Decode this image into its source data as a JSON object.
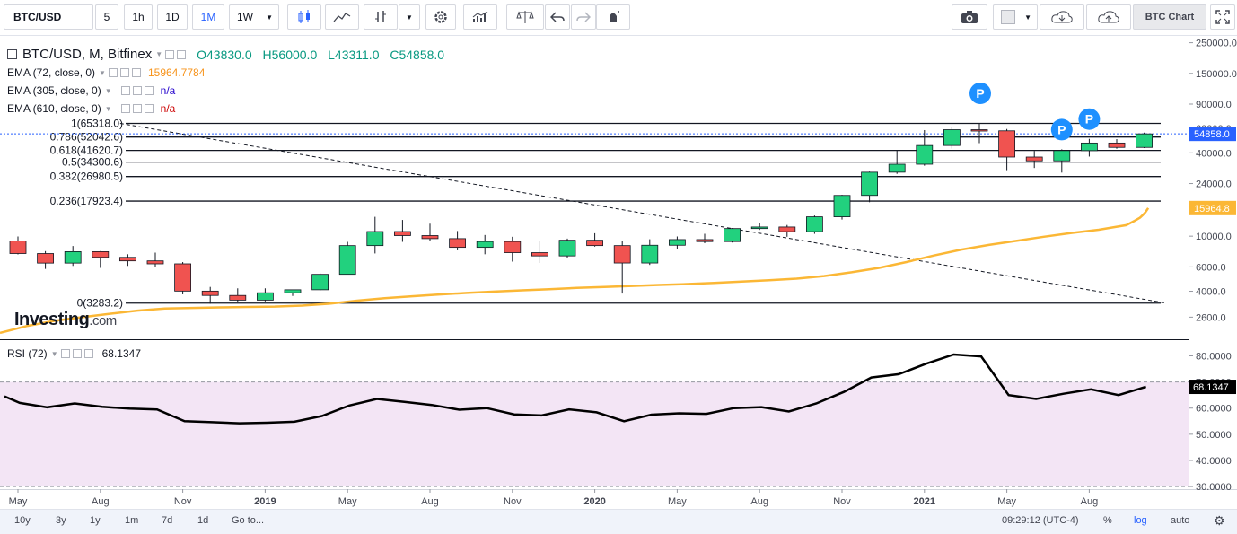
{
  "toolbar": {
    "symbol": "BTC/USD",
    "intervals": [
      "5",
      "1h",
      "1D",
      "1M",
      "1W"
    ],
    "active_interval": "1M",
    "brand_button": "BTC Chart"
  },
  "legend": {
    "title": "BTC/USD, M, Bitfinex",
    "open": "O43830.0",
    "high": "H56000.0",
    "low": "L43311.0",
    "close": "C54858.0",
    "ema72_label": "EMA (72, close, 0)",
    "ema72_value": "15964.7784",
    "ema305_label": "EMA (305, close, 0)",
    "ema305_value": "n/a",
    "ema610_label": "EMA (610, close, 0)",
    "ema610_value": "n/a"
  },
  "rsi_legend": {
    "label": "RSI (72)",
    "value": "68.1347"
  },
  "watermark": {
    "main": "Investing",
    "suffix": ".com"
  },
  "colors": {
    "up": "#22d17e",
    "down": "#f05350",
    "ema": "#fbb735",
    "ema305": "#2200cc",
    "ema610": "#cc0000",
    "price_tag": "#2962ff",
    "marker": "#1e90ff",
    "rsi_band": "#f3e5f5"
  },
  "icons": [
    "candles-icon",
    "line-chart-icon",
    "bars-icon",
    "gear-icon",
    "histogram-icon",
    "scales-icon",
    "undo-icon",
    "redo-icon",
    "alert-icon",
    "camera-icon",
    "cloud-down-icon",
    "cloud-up-icon",
    "fullscreen-icon"
  ],
  "bottom": {
    "ranges": [
      "10y",
      "3y",
      "1y",
      "1m",
      "7d",
      "1d",
      "Go to..."
    ],
    "time": "09:29:12 (UTC-4)",
    "percent": "%",
    "log": "log",
    "auto": "auto"
  },
  "chart_data": {
    "type": "candlestick",
    "scale": "log",
    "months_labels": [
      "May",
      "Aug",
      "Nov",
      "2019",
      "May",
      "Aug",
      "Nov",
      "2020",
      "May",
      "Aug",
      "Nov",
      "2021",
      "May",
      "Aug"
    ],
    "price_ticks": [
      "250000.0",
      "150000.0",
      "90000.0",
      "60000.0",
      "40000.0",
      "24000.0",
      "16000.0",
      "10000.0",
      "6000.0",
      "4000.0",
      "2600.0"
    ],
    "price_tick_values": [
      250000,
      150000,
      90000,
      60000,
      40000,
      24000,
      16000,
      10000,
      6000,
      4000,
      2600
    ],
    "ylim": [
      1800,
      280000
    ],
    "last_price": "54858.0",
    "ema_last": "15964.8",
    "fib_levels": [
      {
        "label": "1(65318.0)",
        "value": 65318.0
      },
      {
        "label": "0.786(52042.6)",
        "value": 52042.6
      },
      {
        "label": "0.618(41620.7)",
        "value": 41620.7
      },
      {
        "label": "0.5(34300.6)",
        "value": 34300.6
      },
      {
        "label": "0.382(26980.5)",
        "value": 26980.5
      },
      {
        "label": "0.236(17923.4)",
        "value": 17923.4
      },
      {
        "label": "0(3283.2)",
        "value": 3283.2
      }
    ],
    "candles": [
      [
        9240,
        7490,
        9950,
        7380
      ],
      [
        7490,
        6390,
        7800,
        5800
      ],
      [
        6390,
        7730,
        8490,
        6100
      ],
      [
        7730,
        7030,
        7800,
        5900
      ],
      [
        7030,
        6630,
        7400,
        6100
      ],
      [
        6630,
        6310,
        7600,
        6000
      ],
      [
        6310,
        4010,
        6500,
        3800
      ],
      [
        4010,
        3730,
        4300,
        3250
      ],
      [
        3730,
        3450,
        4200,
        3350
      ],
      [
        3450,
        3900,
        4200,
        3380
      ],
      [
        3900,
        4100,
        4100,
        3700
      ],
      [
        4100,
        5300,
        5400,
        4050
      ],
      [
        5300,
        8550,
        9100,
        5300
      ],
      [
        8550,
        10800,
        13800,
        7500
      ],
      [
        10800,
        10100,
        13100,
        9100
      ],
      [
        10100,
        9600,
        12300,
        9300
      ],
      [
        9600,
        8300,
        10900,
        7900
      ],
      [
        8300,
        9150,
        10200,
        7400
      ],
      [
        9150,
        7600,
        9900,
        6550
      ],
      [
        7600,
        7200,
        9300,
        6400
      ],
      [
        7200,
        9350,
        9600,
        6900
      ],
      [
        9350,
        8550,
        10500,
        8400
      ],
      [
        8550,
        6400,
        9200,
        3850
      ],
      [
        6400,
        8600,
        9500,
        6200
      ],
      [
        8600,
        9450,
        9950,
        8100
      ],
      [
        9450,
        9140,
        10400,
        8900
      ],
      [
        9140,
        11350,
        11450,
        9000
      ],
      [
        11350,
        11650,
        12450,
        11100
      ],
      [
        11650,
        10780,
        12050,
        9900
      ],
      [
        10780,
        13800,
        14100,
        10400
      ],
      [
        13800,
        19700,
        19900,
        13200
      ],
      [
        19700,
        28990,
        29300,
        17600
      ],
      [
        28990,
        33100,
        41900,
        28200
      ],
      [
        33100,
        45200,
        58400,
        32300
      ],
      [
        45200,
        58800,
        61800,
        43000
      ],
      [
        58800,
        57700,
        64800,
        47000
      ],
      [
        57700,
        37300,
        59500,
        30000
      ],
      [
        37300,
        35000,
        41300,
        31100
      ],
      [
        35000,
        41500,
        42400,
        28800
      ],
      [
        41500,
        47100,
        50500,
        37600
      ],
      [
        47100,
        43800,
        50300,
        42800
      ],
      [
        43800,
        54858,
        56000,
        43311
      ]
    ],
    "ema_series": [
      2000,
      2250,
      2450,
      2600,
      2750,
      2900,
      3000,
      3030,
      3060,
      3080,
      3100,
      3150,
      3250,
      3420,
      3560,
      3680,
      3790,
      3890,
      3980,
      4060,
      4140,
      4230,
      4300,
      4370,
      4440,
      4510,
      4600,
      4700,
      4800,
      4930,
      5150,
      5480,
      5900,
      6500,
      7250,
      8000,
      8650,
      9250,
      9900,
      10550,
      11120,
      12000,
      12900,
      13600,
      14200,
      14900,
      15964.8
    ],
    "ema_x": [
      0,
      1,
      2,
      3,
      4,
      5,
      6,
      7,
      8,
      9,
      10,
      11,
      12,
      13,
      14,
      15,
      16,
      17,
      18,
      19,
      20,
      21,
      22,
      23,
      24,
      25,
      26,
      27,
      28,
      29,
      30,
      31,
      32,
      33,
      34,
      35,
      36,
      37,
      38,
      39,
      40,
      41,
      41.3,
      41.5,
      41.6,
      41.7,
      41.8
    ],
    "markers_on_candles": [
      35,
      38,
      39
    ],
    "rsi": {
      "values": [
        64.5,
        62.0,
        60.3,
        61.8,
        60.5,
        59.8,
        59.5,
        55.0,
        54.6,
        54.2,
        54.4,
        54.8,
        57.0,
        61.0,
        63.5,
        62.4,
        61.2,
        59.4,
        60.0,
        57.6,
        57.2,
        59.5,
        58.4,
        55.0,
        57.5,
        58.0,
        57.8,
        60.0,
        60.4,
        58.7,
        61.8,
        66.2,
        71.7,
        73.0,
        77.0,
        80.5,
        79.8,
        65.0,
        63.5,
        65.5,
        67.2,
        65.0,
        68.1347
      ],
      "ticks": [
        "80.0000",
        "70.0000",
        "60.0000",
        "50.0000",
        "40.0000",
        "30.0000"
      ],
      "tick_values": [
        80,
        70,
        60,
        50,
        40,
        30
      ],
      "band": [
        30,
        70
      ],
      "ylim": [
        29,
        86
      ],
      "last": "68.1347"
    },
    "trendline": {
      "from": [
        -0.2,
        65318
      ],
      "to": [
        41.8,
        3283.2
      ]
    }
  }
}
